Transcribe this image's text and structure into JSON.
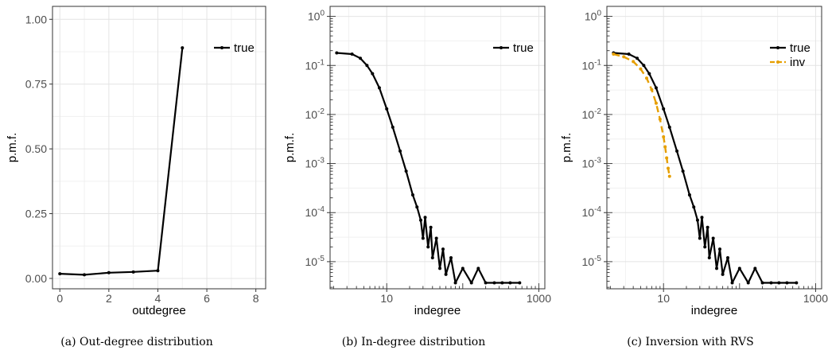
{
  "chart_data": [
    {
      "type": "line",
      "caption_label": "(a)",
      "caption_text": "Out-degree distribution",
      "xlabel": "outdegree",
      "ylabel": "p.m.f.",
      "xscale": "linear",
      "yscale": "linear",
      "xlim": [
        -0.3,
        8.4
      ],
      "ylim": [
        -0.04,
        1.05
      ],
      "xticks": [
        0,
        2,
        4,
        6,
        8
      ],
      "xtick_labels": [
        "0",
        "2",
        "4",
        "6",
        "8"
      ],
      "yticks": [
        0,
        0.25,
        0.5,
        0.75,
        1.0
      ],
      "ytick_labels": [
        "0.00",
        "0.25",
        "0.50",
        "0.75",
        "1.00"
      ],
      "grid": true,
      "legend_position": "top-right",
      "series": [
        {
          "name": "true",
          "color": "#000000",
          "style": "solid",
          "x": [
            0,
            1,
            2,
            3,
            4,
            5
          ],
          "y": [
            0.018,
            0.014,
            0.022,
            0.025,
            0.03,
            0.89
          ]
        }
      ]
    },
    {
      "type": "line",
      "caption_label": "(b)",
      "caption_text": "In-degree distribution",
      "xlabel": "indegree",
      "ylabel": "p.m.f.",
      "xscale": "log",
      "yscale": "log",
      "xlim": [
        1.8,
        1200
      ],
      "ylim": [
        2.8e-06,
        1.6
      ],
      "xticks": [
        10,
        1000
      ],
      "xtick_labels": [
        "10",
        "1000"
      ],
      "yticks": [
        1e-05,
        0.0001,
        0.001,
        0.01,
        0.1,
        1
      ],
      "ytick_labels": [
        [
          "10",
          "-5"
        ],
        [
          "10",
          "-4"
        ],
        [
          "10",
          "-3"
        ],
        [
          "10",
          "-2"
        ],
        [
          "10",
          "-1"
        ],
        [
          "10",
          "0"
        ]
      ],
      "grid": true,
      "legend_position": "top-right",
      "series": [
        {
          "name": "true",
          "color": "#000000",
          "style": "solid",
          "x": [
            2.2,
            3.5,
            4.5,
            5.5,
            6.5,
            8,
            10,
            12,
            15,
            18,
            22,
            25,
            28,
            30,
            32,
            35,
            38,
            40,
            45,
            50,
            55,
            60,
            70,
            80,
            100,
            130,
            160,
            200,
            260,
            330,
            420,
            560
          ],
          "y": [
            0.18,
            0.17,
            0.14,
            0.1,
            0.068,
            0.035,
            0.013,
            0.0055,
            0.0018,
            0.0007,
            0.00023,
            0.00013,
            7e-05,
            3e-05,
            8e-05,
            2e-05,
            5e-05,
            1.2e-05,
            3e-05,
            7.3e-06,
            1.8e-05,
            5.5e-06,
            1.2e-05,
            3.7e-06,
            7.3e-06,
            3.7e-06,
            7.3e-06,
            3.7e-06,
            3.7e-06,
            3.7e-06,
            3.7e-06,
            3.7e-06
          ]
        }
      ]
    },
    {
      "type": "line",
      "caption_label": "(c)",
      "caption_text": "Inversion with RVS",
      "xlabel": "indegree",
      "ylabel": "p.m.f.",
      "xscale": "log",
      "yscale": "log",
      "xlim": [
        1.8,
        1200
      ],
      "ylim": [
        2.8e-06,
        1.6
      ],
      "xticks": [
        10,
        1000
      ],
      "xtick_labels": [
        "10",
        "1000"
      ],
      "yticks": [
        1e-05,
        0.0001,
        0.001,
        0.01,
        0.1,
        1
      ],
      "ytick_labels": [
        [
          "10",
          "-5"
        ],
        [
          "10",
          "-4"
        ],
        [
          "10",
          "-3"
        ],
        [
          "10",
          "-2"
        ],
        [
          "10",
          "-1"
        ],
        [
          "10",
          "0"
        ]
      ],
      "grid": true,
      "legend_position": "top-right",
      "series": [
        {
          "name": "true",
          "color": "#000000",
          "style": "solid",
          "x": [
            2.2,
            3.5,
            4.5,
            5.5,
            6.5,
            8,
            10,
            12,
            15,
            18,
            22,
            25,
            28,
            30,
            32,
            35,
            38,
            40,
            45,
            50,
            55,
            60,
            70,
            80,
            100,
            130,
            160,
            200,
            260,
            330,
            420,
            560
          ],
          "y": [
            0.18,
            0.17,
            0.14,
            0.1,
            0.068,
            0.035,
            0.013,
            0.0055,
            0.0018,
            0.0007,
            0.00023,
            0.00013,
            7e-05,
            3e-05,
            8e-05,
            2e-05,
            5e-05,
            1.2e-05,
            3e-05,
            7.3e-06,
            1.8e-05,
            5.5e-06,
            1.2e-05,
            3.7e-06,
            7.3e-06,
            3.7e-06,
            7.3e-06,
            3.7e-06,
            3.7e-06,
            3.7e-06,
            3.7e-06,
            3.7e-06
          ]
        },
        {
          "name": "inv",
          "color": "#e69f00",
          "style": "dashed",
          "x": [
            2.2,
            3,
            4,
            5,
            6,
            7,
            8,
            9,
            10,
            10.5,
            11,
            11.5,
            12
          ],
          "y": [
            0.17,
            0.15,
            0.12,
            0.085,
            0.055,
            0.032,
            0.017,
            0.008,
            0.0035,
            0.0022,
            0.0013,
            0.0008,
            0.00055
          ]
        }
      ]
    }
  ]
}
